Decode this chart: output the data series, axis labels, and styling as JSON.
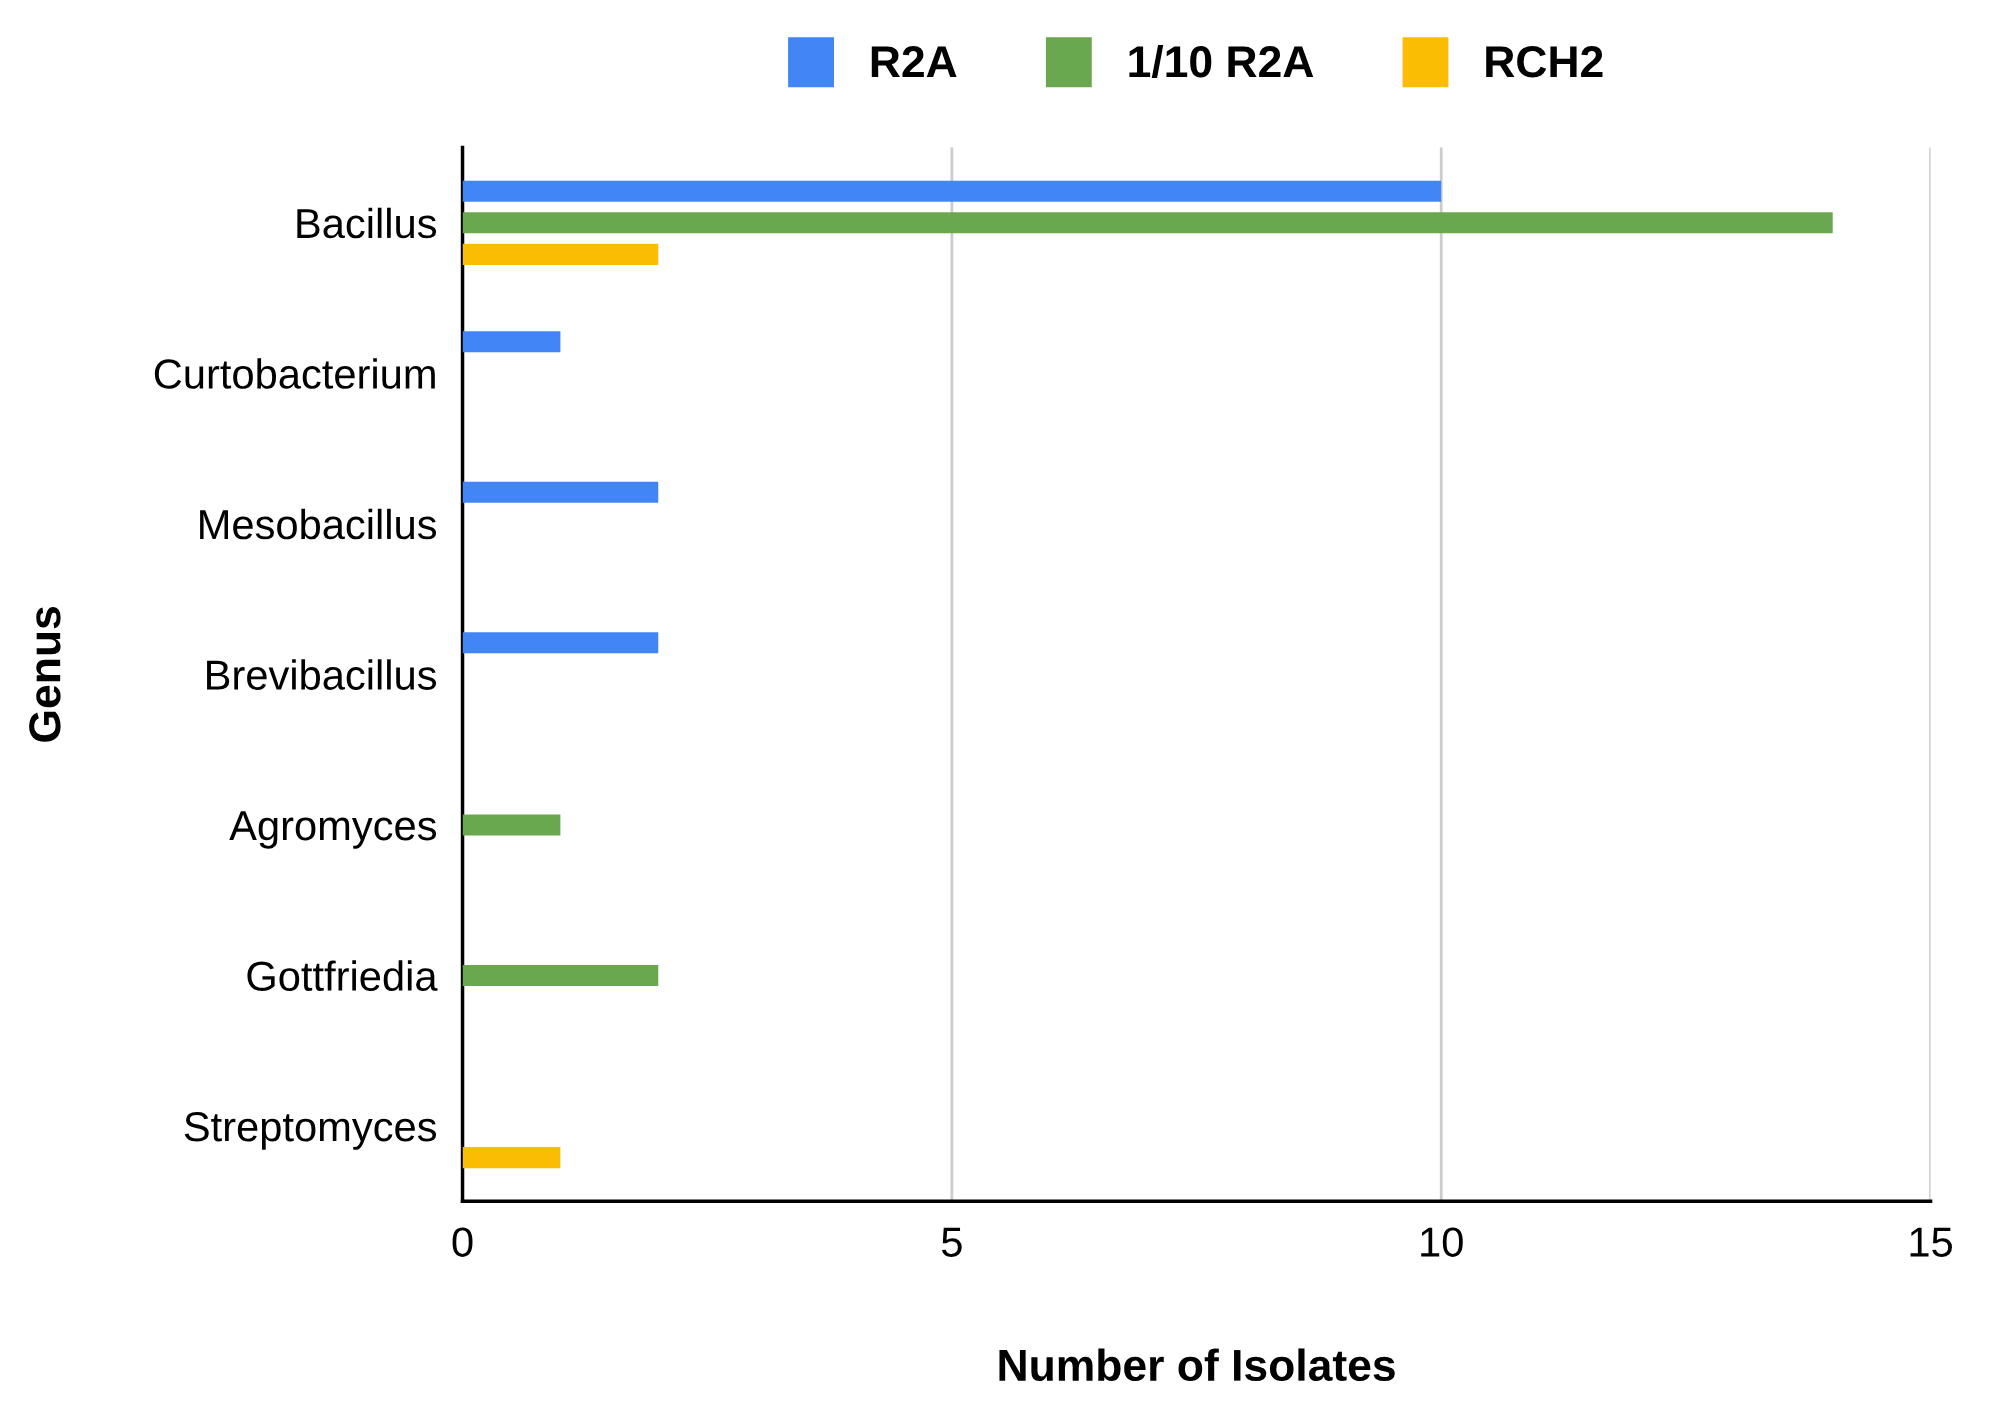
{
  "chart_data": {
    "type": "bar",
    "orientation": "horizontal",
    "xlabel": "Number of Isolates",
    "ylabel": "Genus",
    "categories": [
      "Bacillus",
      "Curtobacterium",
      "Mesobacillus",
      "Brevibacillus",
      "Agromyces",
      "Gottfriedia",
      "Streptomyces"
    ],
    "series": [
      {
        "name": "R2A",
        "color": "#4285f4",
        "values": [
          10,
          1,
          2,
          2,
          null,
          null,
          null
        ]
      },
      {
        "name": "1/10 R2A",
        "color": "#6aa84f",
        "values": [
          14,
          null,
          null,
          null,
          1,
          2,
          null
        ]
      },
      {
        "name": "RCH2",
        "color": "#fbbc04",
        "values": [
          2,
          null,
          null,
          null,
          null,
          null,
          1
        ]
      }
    ],
    "xlim": [
      0,
      15
    ],
    "xticks": [
      0,
      5,
      10,
      15
    ],
    "grid": "x",
    "legend": "top"
  }
}
